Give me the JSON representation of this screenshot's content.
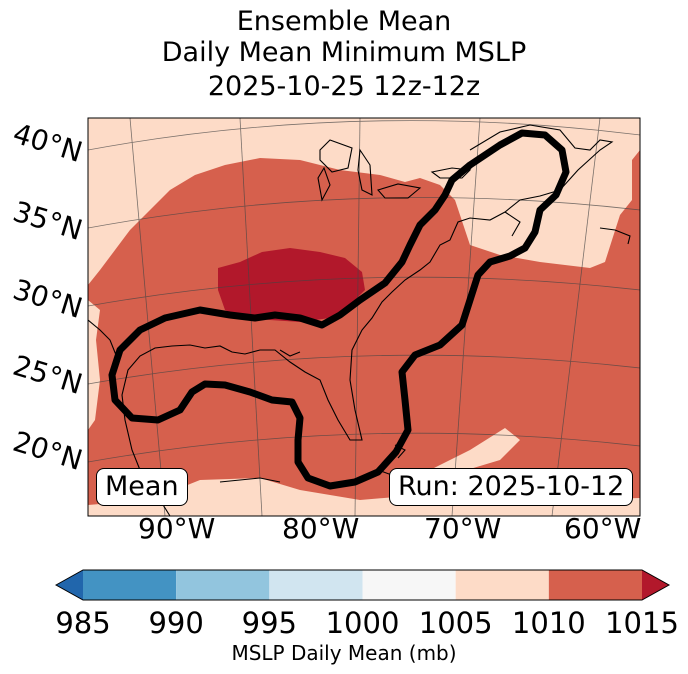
{
  "title": {
    "line1": "Ensemble Mean",
    "line2": "Daily Mean Minimum MSLP",
    "line3": "2025-10-25 12z-12z"
  },
  "lat_labels": [
    "40°N",
    "35°N",
    "30°N",
    "25°N",
    "20°N"
  ],
  "lon_labels": [
    "90°W",
    "80°W",
    "70°W",
    "60°W"
  ],
  "badges": {
    "mean": "Mean",
    "run": "Run: 2025-10-12"
  },
  "colorbar": {
    "label": "MSLP Daily Mean (mb)",
    "ticks": [
      "985",
      "990",
      "995",
      "1000",
      "1005",
      "1010",
      "1015"
    ],
    "bins": [
      {
        "from": 985,
        "to": 990,
        "color": "#4393c3"
      },
      {
        "from": 990,
        "to": 995,
        "color": "#92c5de"
      },
      {
        "from": 995,
        "to": 1000,
        "color": "#d1e5f0"
      },
      {
        "from": 1000,
        "to": 1005,
        "color": "#f7f7f7"
      },
      {
        "from": 1005,
        "to": 1010,
        "color": "#fddbc7"
      },
      {
        "from": 1010,
        "to": 1015,
        "color": "#d6604d"
      }
    ],
    "extend_low_color": "#2166ac",
    "extend_high_color": "#b2182b"
  },
  "map_colors": {
    "mslp_1005_1010": "#fddbc7",
    "mslp_1010_1015": "#d6604d",
    "mslp_above_1015": "#b2182b",
    "probability_contour": "#000000"
  }
}
